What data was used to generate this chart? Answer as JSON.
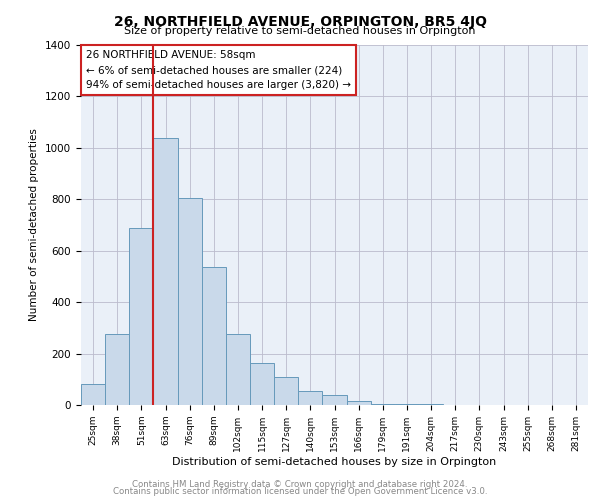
{
  "title": "26, NORTHFIELD AVENUE, ORPINGTON, BR5 4JQ",
  "subtitle": "Size of property relative to semi-detached houses in Orpington",
  "xlabel": "Distribution of semi-detached houses by size in Orpington",
  "ylabel": "Number of semi-detached properties",
  "footer_line1": "Contains HM Land Registry data © Crown copyright and database right 2024.",
  "footer_line2": "Contains public sector information licensed under the Open Government Licence v3.0.",
  "annotation_title": "26 NORTHFIELD AVENUE: 58sqm",
  "annotation_line1": "← 6% of semi-detached houses are smaller (224)",
  "annotation_line2": "94% of semi-detached houses are larger (3,820) →",
  "bar_color": "#c9d9ea",
  "bar_edge_color": "#6699bb",
  "highlight_color": "#cc2222",
  "categories": [
    "25sqm",
    "38sqm",
    "51sqm",
    "63sqm",
    "76sqm",
    "89sqm",
    "102sqm",
    "115sqm",
    "127sqm",
    "140sqm",
    "153sqm",
    "166sqm",
    "179sqm",
    "191sqm",
    "204sqm",
    "217sqm",
    "230sqm",
    "243sqm",
    "255sqm",
    "268sqm",
    "281sqm"
  ],
  "values": [
    80,
    275,
    690,
    1040,
    805,
    535,
    275,
    165,
    110,
    55,
    40,
    15,
    5,
    3,
    2,
    1,
    0,
    0,
    0,
    0,
    0
  ],
  "ylim": [
    0,
    1400
  ],
  "yticks": [
    0,
    200,
    400,
    600,
    800,
    1000,
    1200,
    1400
  ],
  "red_line_x": 2.5,
  "plot_bg": "#eaf0f8",
  "grid_color": "#bbbbcc",
  "fig_width": 6.0,
  "fig_height": 5.0,
  "fig_dpi": 100
}
